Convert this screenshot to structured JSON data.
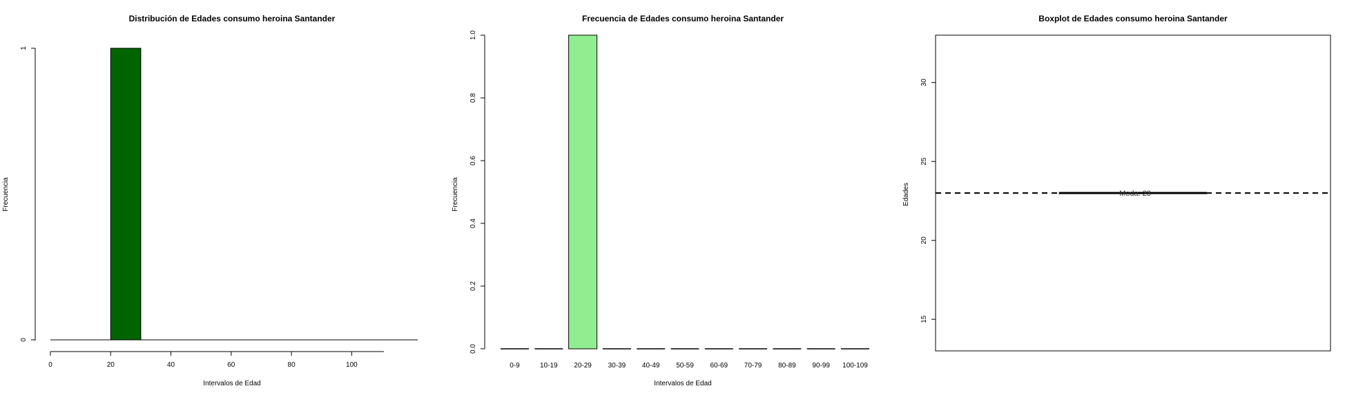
{
  "chart_data": [
    {
      "type": "bar",
      "variant": "histogram",
      "title": "Distribución de Edades consumo heroina Santander",
      "xlabel": "Intervalos de Edad",
      "ylabel": "Frecuencia",
      "bins": [
        [
          20,
          30
        ]
      ],
      "values": [
        1
      ],
      "xlim": [
        0,
        110
      ],
      "xticks": [
        0,
        20,
        40,
        60,
        80,
        100
      ],
      "ylim": [
        0,
        1
      ],
      "yticks": [
        0,
        1
      ],
      "color": "#006400"
    },
    {
      "type": "bar",
      "title": "Frecuencia de Edades consumo heroina Santander",
      "xlabel": "Intervalos de Edad",
      "ylabel": "Frecuencia",
      "categories": [
        "0-9",
        "10-19",
        "20-29",
        "30-39",
        "40-49",
        "50-59",
        "60-69",
        "70-79",
        "80-89",
        "90-99",
        "100-109"
      ],
      "values": [
        0,
        0,
        1,
        0,
        0,
        0,
        0,
        0,
        0,
        0,
        0
      ],
      "ylim": [
        0,
        1
      ],
      "yticks": [
        "0.0",
        "0.2",
        "0.4",
        "0.6",
        "0.8",
        "1.0"
      ],
      "color": "#90EE90"
    },
    {
      "type": "box",
      "title": "Boxplot de Edades consumo heroina Santander",
      "ylabel": "Edades",
      "median": 23,
      "q1": 23,
      "q3": 23,
      "ylim": [
        13,
        33
      ],
      "yticks": [
        15,
        20,
        25,
        30
      ],
      "reference_line": {
        "value": 23,
        "style": "dashed",
        "label": "Moda: 23"
      }
    }
  ]
}
